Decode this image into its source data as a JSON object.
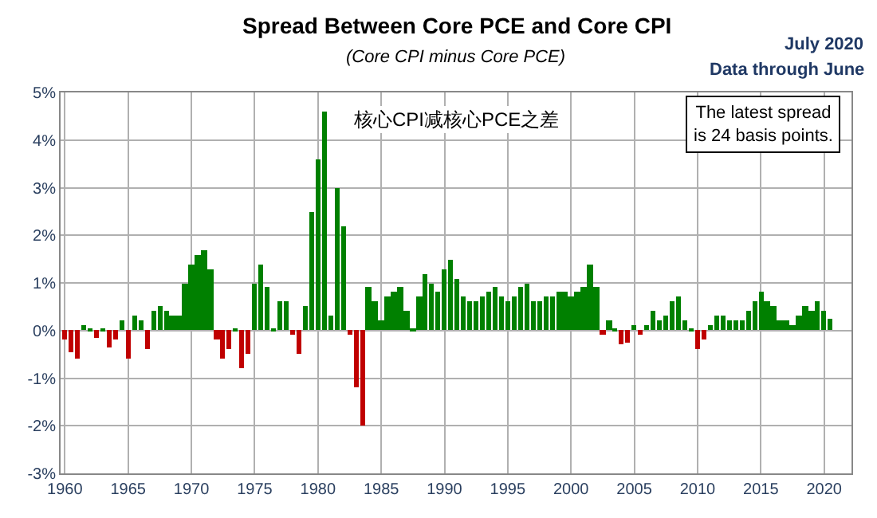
{
  "chart_data": {
    "type": "bar",
    "title": "Spread Between Core PCE and Core CPI",
    "subtitle": "(Core CPI minus Core PCE)",
    "annotations": [
      "核心CPI减核心PCE之差",
      "The latest spread\nis 24 basis points.",
      "July 2020",
      "Data through June"
    ],
    "x": [
      "1960-01",
      "1960-07",
      "1961-01",
      "1961-07",
      "1962-01",
      "1962-07",
      "1963-01",
      "1963-07",
      "1964-01",
      "1964-07",
      "1965-01",
      "1965-07",
      "1966-01",
      "1966-07",
      "1967-01",
      "1967-07",
      "1968-01",
      "1968-07",
      "1969-01",
      "1969-07",
      "1970-01",
      "1970-07",
      "1971-01",
      "1971-07",
      "1972-01",
      "1972-07",
      "1973-01",
      "1973-07",
      "1974-01",
      "1974-07",
      "1975-01",
      "1975-07",
      "1976-01",
      "1976-07",
      "1977-01",
      "1977-07",
      "1978-01",
      "1978-07",
      "1979-01",
      "1979-07",
      "1980-01",
      "1980-07",
      "1981-01",
      "1981-07",
      "1982-01",
      "1982-07",
      "1983-01",
      "1983-07",
      "1984-01",
      "1984-07",
      "1985-01",
      "1985-07",
      "1986-01",
      "1986-07",
      "1987-01",
      "1987-07",
      "1988-01",
      "1988-07",
      "1989-01",
      "1989-07",
      "1990-01",
      "1990-07",
      "1991-01",
      "1991-07",
      "1992-01",
      "1992-07",
      "1993-01",
      "1993-07",
      "1994-01",
      "1994-07",
      "1995-01",
      "1995-07",
      "1996-01",
      "1996-07",
      "1997-01",
      "1997-07",
      "1998-01",
      "1998-07",
      "1999-01",
      "1999-07",
      "2000-01",
      "2000-07",
      "2001-01",
      "2001-07",
      "2002-01",
      "2002-07",
      "2003-01",
      "2003-07",
      "2004-01",
      "2004-07",
      "2005-01",
      "2005-07",
      "2006-01",
      "2006-07",
      "2007-01",
      "2007-07",
      "2008-01",
      "2008-07",
      "2009-01",
      "2009-07",
      "2010-01",
      "2010-07",
      "2011-01",
      "2011-07",
      "2012-01",
      "2012-07",
      "2013-01",
      "2013-07",
      "2014-01",
      "2014-07",
      "2015-01",
      "2015-07",
      "2016-01",
      "2016-07",
      "2017-01",
      "2017-07",
      "2018-01",
      "2018-07",
      "2019-01",
      "2019-07",
      "2020-01",
      "2020-06"
    ],
    "values": [
      -0.2,
      -0.45,
      -0.6,
      0.1,
      0.05,
      -0.15,
      0.05,
      -0.35,
      -0.2,
      0.2,
      -0.6,
      0.3,
      0.2,
      -0.4,
      0.4,
      0.5,
      0.4,
      0.3,
      0.3,
      1.0,
      1.4,
      1.6,
      1.7,
      1.3,
      -0.2,
      -0.6,
      -0.4,
      0.05,
      -0.8,
      -0.5,
      1.0,
      1.4,
      0.9,
      0.05,
      0.6,
      0.6,
      -0.1,
      -0.5,
      0.5,
      2.5,
      3.6,
      4.6,
      0.3,
      3.0,
      2.2,
      -0.1,
      -1.2,
      -2.0,
      0.9,
      0.6,
      0.2,
      0.7,
      0.8,
      0.9,
      0.4,
      0.05,
      0.7,
      1.2,
      1.0,
      0.8,
      1.3,
      1.5,
      1.1,
      0.7,
      0.6,
      0.6,
      0.7,
      0.8,
      0.9,
      0.7,
      0.6,
      0.7,
      0.9,
      1.0,
      0.6,
      0.6,
      0.7,
      0.7,
      0.8,
      0.8,
      0.7,
      0.8,
      0.9,
      1.4,
      0.9,
      -0.1,
      0.2,
      0.05,
      -0.3,
      -0.25,
      0.1,
      -0.1,
      0.1,
      0.4,
      0.2,
      0.3,
      0.6,
      0.7,
      0.2,
      0.05,
      -0.4,
      -0.2,
      0.1,
      0.3,
      0.3,
      0.2,
      0.2,
      0.2,
      0.4,
      0.6,
      0.8,
      0.6,
      0.5,
      0.2,
      0.2,
      0.1,
      0.3,
      0.5,
      0.4,
      0.6,
      0.4,
      0.24
    ],
    "colors": [
      "#c00000",
      "#c00000",
      "#c00000",
      "#008000",
      "#008000",
      "#c00000",
      "#008000",
      "#c00000",
      "#c00000",
      "#008000",
      "#c00000",
      "#008000",
      "#008000",
      "#c00000",
      "#008000",
      "#008000",
      "#008000",
      "#008000",
      "#008000",
      "#008000",
      "#008000",
      "#008000",
      "#008000",
      "#008000",
      "#c00000",
      "#c00000",
      "#c00000",
      "#008000",
      "#c00000",
      "#c00000",
      "#008000",
      "#008000",
      "#008000",
      "#008000",
      "#008000",
      "#008000",
      "#c00000",
      "#c00000",
      "#008000",
      "#008000",
      "#008000",
      "#008000",
      "#008000",
      "#008000",
      "#008000",
      "#c00000",
      "#c00000",
      "#c00000",
      "#008000",
      "#008000",
      "#008000",
      "#008000",
      "#008000",
      "#008000",
      "#008000",
      "#008000",
      "#008000",
      "#008000",
      "#008000",
      "#008000",
      "#008000",
      "#008000",
      "#008000",
      "#008000",
      "#008000",
      "#008000",
      "#008000",
      "#008000",
      "#008000",
      "#008000",
      "#008000",
      "#008000",
      "#008000",
      "#008000",
      "#008000",
      "#008000",
      "#008000",
      "#008000",
      "#008000",
      "#008000",
      "#008000",
      "#008000",
      "#008000",
      "#008000",
      "#008000",
      "#c00000",
      "#008000",
      "#008000",
      "#c00000",
      "#c00000",
      "#008000",
      "#c00000",
      "#008000",
      "#008000",
      "#008000",
      "#008000",
      "#008000",
      "#008000",
      "#008000",
      "#008000",
      "#c00000",
      "#c00000",
      "#008000",
      "#008000",
      "#008000",
      "#008000",
      "#008000",
      "#008000",
      "#008000",
      "#008000",
      "#008000",
      "#008000",
      "#008000",
      "#008000",
      "#008000",
      "#008000",
      "#008000",
      "#008000",
      "#008000",
      "#008000",
      "#008000",
      "#008000"
    ],
    "xlim": [
      "1959-09",
      "2022-03"
    ],
    "xticks": [
      "1960",
      "1965",
      "1970",
      "1975",
      "1980",
      "1985",
      "1990",
      "1995",
      "2000",
      "2005",
      "2010",
      "2015",
      "2020"
    ],
    "ylim": [
      -3,
      5
    ],
    "yticks": [
      {
        "value": -3,
        "label": "-3%"
      },
      {
        "value": -2,
        "label": "-2%"
      },
      {
        "value": -1,
        "label": "-1%"
      },
      {
        "value": 0,
        "label": "0%"
      },
      {
        "value": 1,
        "label": "1%"
      },
      {
        "value": 2,
        "label": "2%"
      },
      {
        "value": 3,
        "label": "3%"
      },
      {
        "value": 4,
        "label": "4%"
      },
      {
        "value": 5,
        "label": "5%"
      }
    ],
    "grid": true
  }
}
